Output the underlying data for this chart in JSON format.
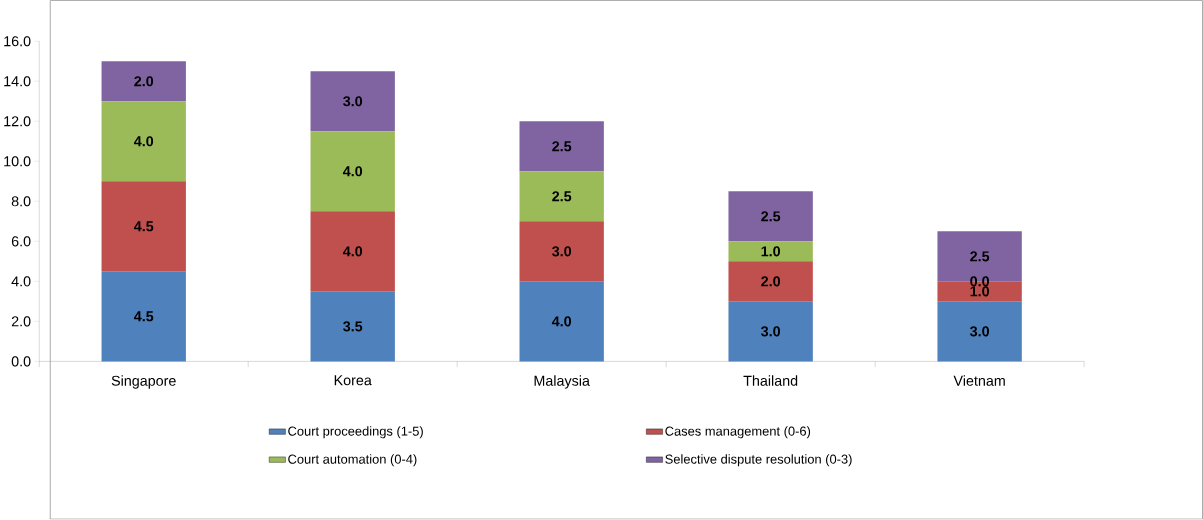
{
  "chart_data": {
    "type": "bar",
    "stacked": true,
    "legend": "bottom",
    "grid": false,
    "categories": [
      "Singapore",
      "Korea",
      "Malaysia",
      "Thailand",
      "Vietnam"
    ],
    "series": [
      {
        "name": "Court proceedings (1-5)",
        "color": "#4f81bd",
        "values": [
          4.5,
          3.5,
          4.0,
          3.0,
          3.0
        ],
        "value_labels": [
          "4.5",
          "3.5",
          "4.0",
          "3.0",
          "3.0"
        ]
      },
      {
        "name": "Cases management (0-6)",
        "color": "#c0504d",
        "values": [
          4.5,
          4.0,
          3.0,
          2.0,
          1.0
        ],
        "value_labels": [
          "4.5",
          "4.0",
          "3.0",
          "2.0",
          "1.0"
        ]
      },
      {
        "name": "Court automation (0-4)",
        "color": "#9bbb59",
        "values": [
          4.0,
          4.0,
          2.5,
          1.0,
          0.0
        ],
        "value_labels": [
          "4.0",
          "4.0",
          "2.5",
          "1.0",
          "0.0"
        ]
      },
      {
        "name": "Selective dispute resolution (0-3)",
        "color": "#8064a2",
        "values": [
          2.0,
          3.0,
          2.5,
          2.5,
          2.5
        ],
        "value_labels": [
          "2.0",
          "3.0",
          "2.5",
          "2.5",
          "2.5"
        ]
      }
    ],
    "ylim": [
      0,
      16
    ],
    "yticks": [
      {
        "value": 0,
        "label": "0.0"
      },
      {
        "value": 2,
        "label": "2.0"
      },
      {
        "value": 4,
        "label": "4.0"
      },
      {
        "value": 6,
        "label": "6.0"
      },
      {
        "value": 8,
        "label": "8.0"
      },
      {
        "value": 10,
        "label": "10.0"
      },
      {
        "value": 12,
        "label": "12.0"
      },
      {
        "value": 14,
        "label": "14.0"
      },
      {
        "value": 16,
        "label": "16.0"
      }
    ]
  }
}
